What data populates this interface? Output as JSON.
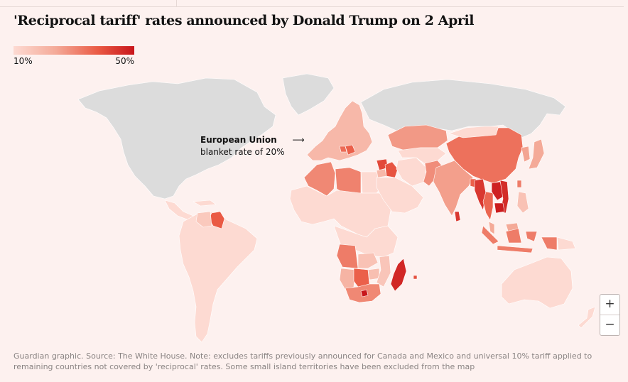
{
  "title": "'Reciprocal tariff' rates announced by Donald Trump on 2 April",
  "legend": {
    "min_label": "10%",
    "max_label": "50%",
    "min_value": 10,
    "max_value": 50,
    "color_low": "#fddad2",
    "color_high": "#c8161b"
  },
  "annotation": {
    "heading": "European Union",
    "text": "blanket rate of 20%",
    "arrow": "⟶"
  },
  "zoom": {
    "in_label": "+",
    "out_label": "−"
  },
  "footnote": "Guardian graphic. Source: The White House. Note: excludes tariffs previously announced for Canada and Mexico and universal 10% tariff applied to remaining countries not covered by 'reciprocal' rates. Some small island territories have been excluded from the map",
  "colors": {
    "background": "#fdf1ef",
    "no_tariff": "#dcdcdc",
    "border": "#ffffff"
  },
  "regions": [
    {
      "name": "North America (Canada, USA, Mexico)",
      "rate": null
    },
    {
      "name": "Greenland",
      "rate": null
    },
    {
      "name": "Russia",
      "rate": null
    },
    {
      "name": "Central America and Caribbean",
      "rate": 10
    },
    {
      "name": "South America",
      "rate": 10
    },
    {
      "name": "Guyana",
      "rate": 38
    },
    {
      "name": "Venezuela",
      "rate": 15
    },
    {
      "name": "European Union",
      "rate": 20
    },
    {
      "name": "Serbia",
      "rate": 37
    },
    {
      "name": "Bosnia and Herzegovina",
      "rate": 35
    },
    {
      "name": "North Africa west (Algeria)",
      "rate": 30
    },
    {
      "name": "Libya",
      "rate": 31
    },
    {
      "name": "Egypt",
      "rate": 10
    },
    {
      "name": "Saharan and West Africa",
      "rate": 10
    },
    {
      "name": "Syria",
      "rate": 41
    },
    {
      "name": "Iraq",
      "rate": 39
    },
    {
      "name": "Jordan",
      "rate": 20
    },
    {
      "name": "Arabian Peninsula",
      "rate": 10
    },
    {
      "name": "Iran",
      "rate": 10
    },
    {
      "name": "Kazakhstan",
      "rate": 27
    },
    {
      "name": "Central Asia",
      "rate": 10
    },
    {
      "name": "Afghanistan and Pakistan",
      "rate": 29
    },
    {
      "name": "India",
      "rate": 26
    },
    {
      "name": "Sri Lanka",
      "rate": 44
    },
    {
      "name": "Bangladesh",
      "rate": 37
    },
    {
      "name": "China",
      "rate": 34
    },
    {
      "name": "Mongolia",
      "rate": 10
    },
    {
      "name": "Korea",
      "rate": 25
    },
    {
      "name": "Japan",
      "rate": 24
    },
    {
      "name": "Taiwan",
      "rate": 32
    },
    {
      "name": "Myanmar",
      "rate": 44
    },
    {
      "name": "Thailand",
      "rate": 36
    },
    {
      "name": "Laos",
      "rate": 48
    },
    {
      "name": "Vietnam",
      "rate": 46
    },
    {
      "name": "Cambodia",
      "rate": 49
    },
    {
      "name": "Philippines",
      "rate": 17
    },
    {
      "name": "Malaysia",
      "rate": 24
    },
    {
      "name": "Indonesia",
      "rate": 32
    },
    {
      "name": "Papua New Guinea",
      "rate": 10
    },
    {
      "name": "Australia",
      "rate": 10
    },
    {
      "name": "New Zealand",
      "rate": 10
    },
    {
      "name": "Central and East Africa",
      "rate": 10
    },
    {
      "name": "Angola",
      "rate": 32
    },
    {
      "name": "Zambia and Malawi",
      "rate": 17
    },
    {
      "name": "Zimbabwe",
      "rate": 18
    },
    {
      "name": "Namibia",
      "rate": 21
    },
    {
      "name": "Botswana",
      "rate": 37
    },
    {
      "name": "Mozambique",
      "rate": 16
    },
    {
      "name": "South Africa",
      "rate": 30
    },
    {
      "name": "Lesotho",
      "rate": 50
    },
    {
      "name": "Madagascar",
      "rate": 47
    },
    {
      "name": "Mauritius",
      "rate": 40
    }
  ]
}
